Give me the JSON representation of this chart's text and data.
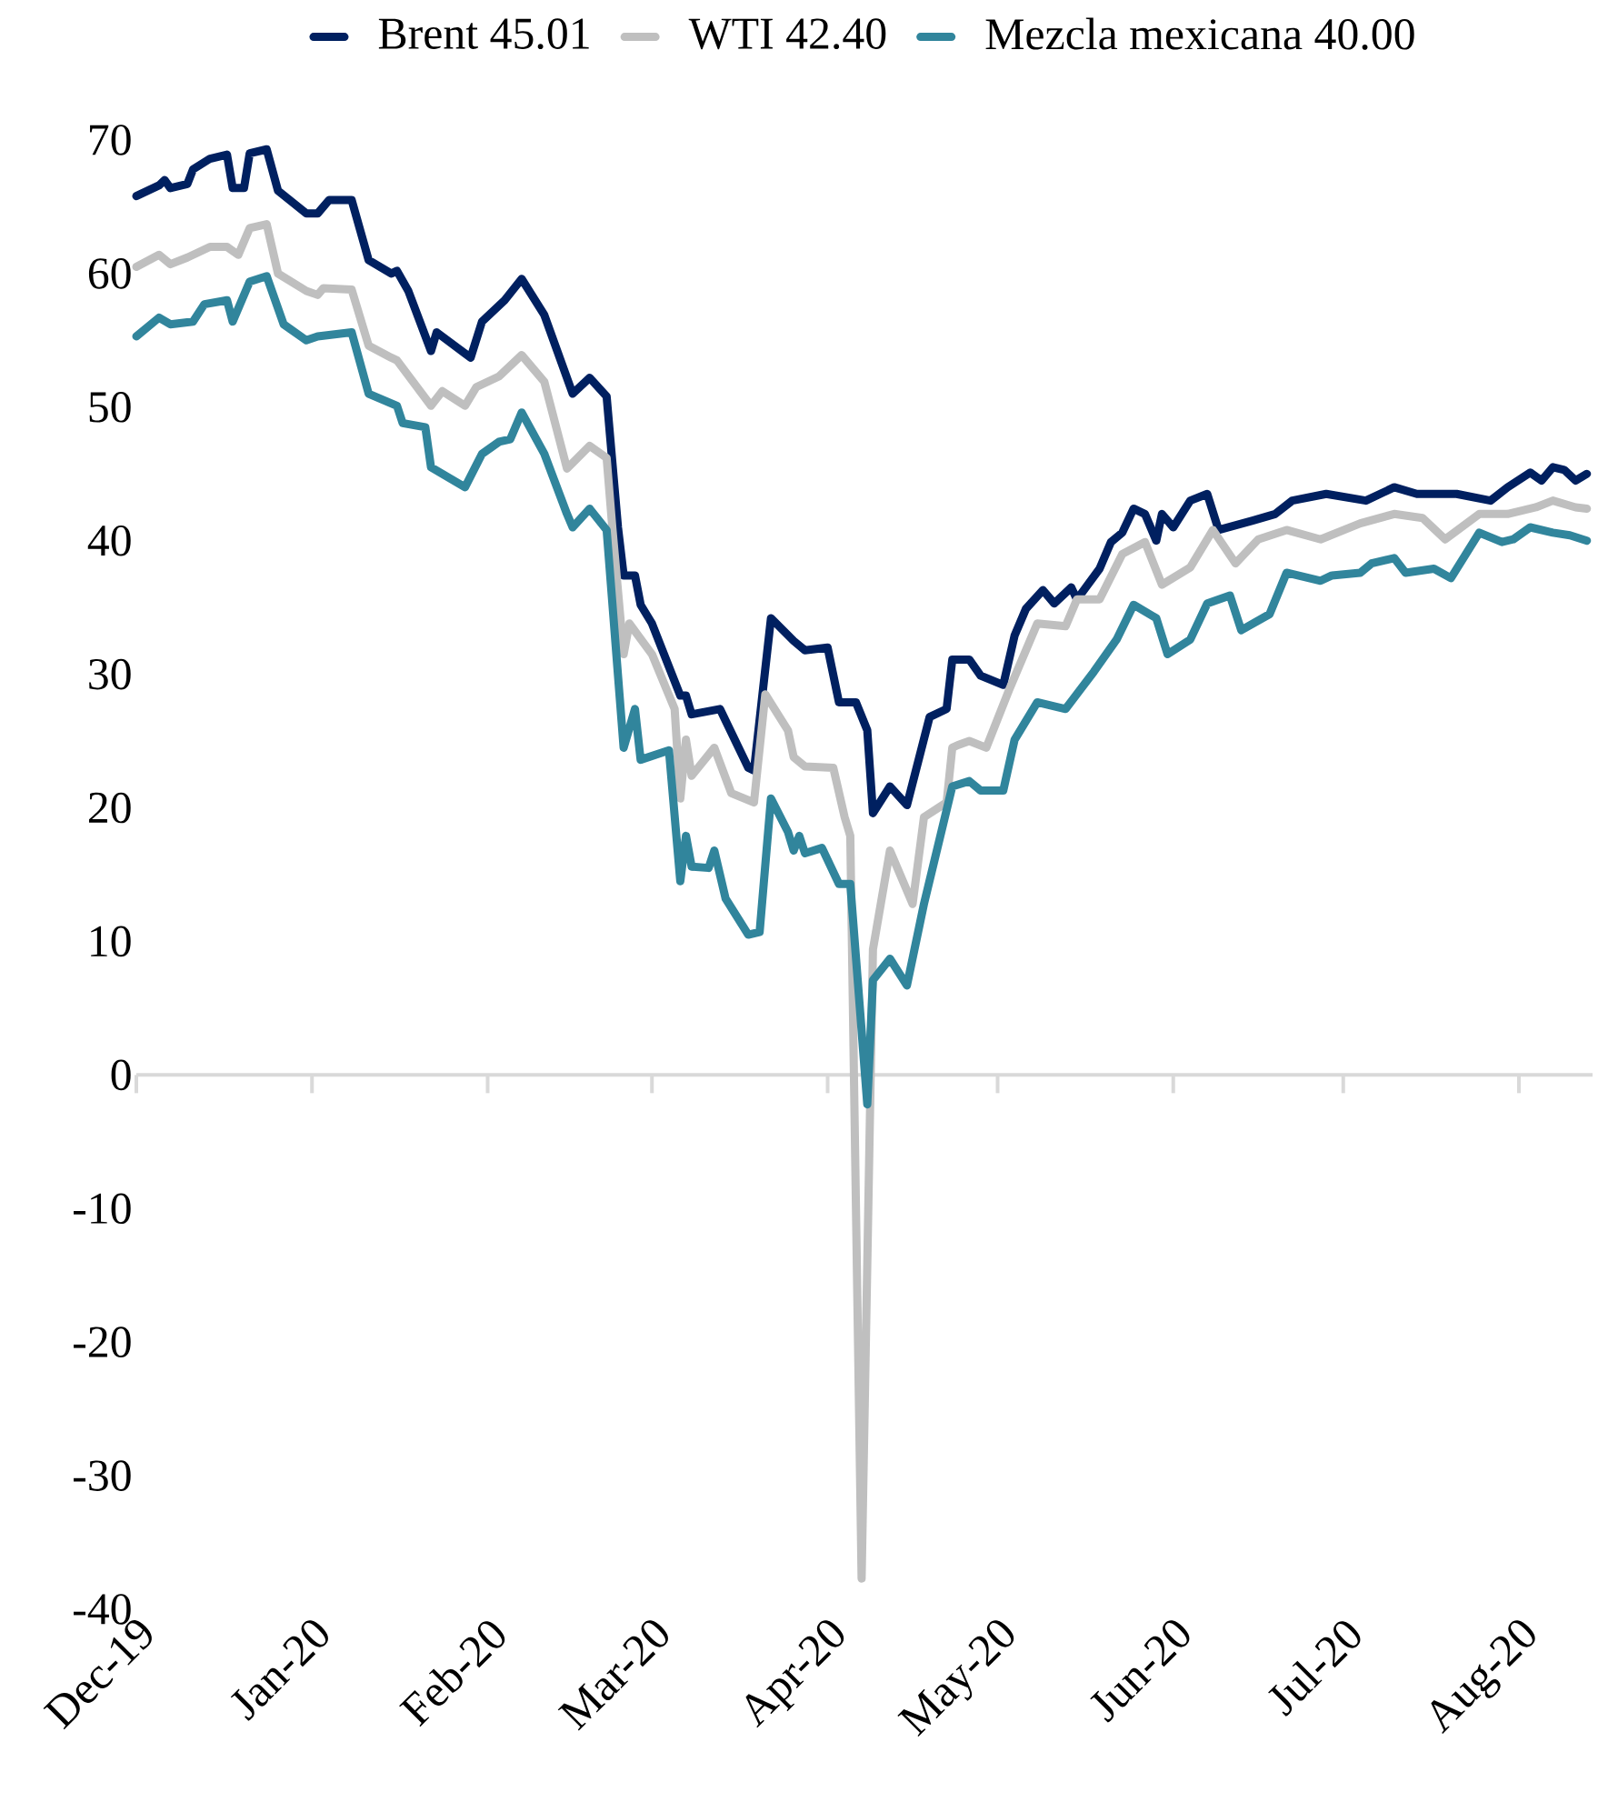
{
  "chart_data": {
    "type": "line",
    "legend": "top",
    "xlim": [
      "2019-12-01",
      "2020-08-14"
    ],
    "xticks": [
      {
        "value": "2019-12-01",
        "label": "Dec-19"
      },
      {
        "value": "2020-01-01",
        "label": "Jan-20"
      },
      {
        "value": "2020-02-01",
        "label": "Feb-20"
      },
      {
        "value": "2020-03-01",
        "label": "Mar-20"
      },
      {
        "value": "2020-04-01",
        "label": "Apr-20"
      },
      {
        "value": "2020-05-01",
        "label": "May-20"
      },
      {
        "value": "2020-06-01",
        "label": "Jun-20"
      },
      {
        "value": "2020-07-01",
        "label": "Jul-20"
      },
      {
        "value": "2020-08-01",
        "label": "Aug-20"
      }
    ],
    "ylim": [
      -40,
      70
    ],
    "yticks": [
      -40,
      -30,
      -20,
      -10,
      0,
      10,
      20,
      30,
      40,
      50,
      60,
      70
    ],
    "series": [
      {
        "name": "Brent 45.01",
        "color": "#002060",
        "x": [
          "2019-12-01",
          "2019-12-05",
          "2019-12-06",
          "2019-12-07",
          "2019-12-10",
          "2019-12-11",
          "2019-12-14",
          "2019-12-17",
          "2019-12-18",
          "2019-12-20",
          "2019-12-21",
          "2019-12-24",
          "2019-12-26",
          "2019-12-31",
          "2020-01-02",
          "2020-01-04",
          "2020-01-08",
          "2020-01-11",
          "2020-01-15",
          "2020-01-16",
          "2020-01-18",
          "2020-01-22",
          "2020-01-23",
          "2020-01-29",
          "2020-01-31",
          "2020-02-04",
          "2020-02-07",
          "2020-02-11",
          "2020-02-16",
          "2020-02-19",
          "2020-02-22",
          "2020-02-24",
          "2020-02-25",
          "2020-02-27",
          "2020-02-28",
          "2020-03-01",
          "2020-03-06",
          "2020-03-07",
          "2020-03-08",
          "2020-03-13",
          "2020-03-18",
          "2020-03-19",
          "2020-03-22",
          "2020-03-26",
          "2020-03-28",
          "2020-04-01",
          "2020-04-03",
          "2020-04-06",
          "2020-04-08",
          "2020-04-09",
          "2020-04-12",
          "2020-04-15",
          "2020-04-19",
          "2020-04-22",
          "2020-04-23",
          "2020-04-26",
          "2020-04-28",
          "2020-05-02",
          "2020-05-04",
          "2020-05-06",
          "2020-05-09",
          "2020-05-11",
          "2020-05-14",
          "2020-05-15",
          "2020-05-19",
          "2020-05-21",
          "2020-05-23",
          "2020-05-25",
          "2020-05-27",
          "2020-05-29",
          "2020-05-30",
          "2020-06-01",
          "2020-06-04",
          "2020-06-07",
          "2020-06-09",
          "2020-06-15",
          "2020-06-19",
          "2020-06-22",
          "2020-06-28",
          "2020-07-05",
          "2020-07-10",
          "2020-07-14",
          "2020-07-21",
          "2020-07-27",
          "2020-07-30",
          "2020-08-03",
          "2020-08-05",
          "2020-08-07",
          "2020-08-09",
          "2020-08-11",
          "2020-08-13"
        ],
        "values": [
          65.8,
          66.6,
          67,
          66.4,
          66.7,
          67.8,
          68.6,
          68.9,
          66.4,
          66.4,
          69,
          69.3,
          66.2,
          64.5,
          64.5,
          65.5,
          65.5,
          61,
          60,
          60.2,
          58.7,
          54.2,
          55.6,
          53.7,
          56.4,
          58,
          59.6,
          56.9,
          51,
          52.2,
          50.8,
          41,
          37.4,
          37.4,
          35.2,
          33.8,
          28.4,
          28.4,
          27,
          27.4,
          23,
          22.8,
          34.2,
          32.5,
          31.8,
          32,
          27.9,
          27.9,
          25.8,
          19.6,
          21.6,
          20.2,
          26.8,
          27.4,
          31.1,
          31.1,
          29.9,
          29.2,
          32.9,
          34.9,
          36.3,
          35.3,
          36.5,
          35.6,
          37.9,
          39.9,
          40.6,
          42.4,
          42,
          40,
          42,
          41,
          43,
          43.5,
          40.8,
          41.5,
          42,
          43,
          43.5,
          43,
          44,
          43.5,
          43.5,
          43,
          44,
          45.1,
          44.5,
          45.5,
          45.3,
          44.5,
          45
        ]
      },
      {
        "name": "WTI 42.40",
        "color": "#bfbfbf",
        "x": [
          "2019-12-01",
          "2019-12-05",
          "2019-12-07",
          "2019-12-10",
          "2019-12-14",
          "2019-12-17",
          "2019-12-19",
          "2019-12-21",
          "2019-12-24",
          "2019-12-26",
          "2019-12-31",
          "2020-01-02",
          "2020-01-03",
          "2020-01-08",
          "2020-01-11",
          "2020-01-15",
          "2020-01-16",
          "2020-01-22",
          "2020-01-24",
          "2020-01-28",
          "2020-01-30",
          "2020-02-03",
          "2020-02-07",
          "2020-02-11",
          "2020-02-15",
          "2020-02-19",
          "2020-02-22",
          "2020-02-23",
          "2020-02-25",
          "2020-02-26",
          "2020-03-01",
          "2020-03-05",
          "2020-03-06",
          "2020-03-07",
          "2020-03-08",
          "2020-03-12",
          "2020-03-15",
          "2020-03-19",
          "2020-03-21",
          "2020-03-25",
          "2020-03-26",
          "2020-03-28",
          "2020-04-02",
          "2020-04-04",
          "2020-04-05",
          "2020-04-07",
          "2020-04-09",
          "2020-04-12",
          "2020-04-16",
          "2020-04-18",
          "2020-04-22",
          "2020-04-23",
          "2020-04-24",
          "2020-04-26",
          "2020-04-29",
          "2020-05-03",
          "2020-05-08",
          "2020-05-13",
          "2020-05-15",
          "2020-05-19",
          "2020-05-23",
          "2020-05-27",
          "2020-05-30",
          "2020-06-04",
          "2020-06-08",
          "2020-06-12",
          "2020-06-16",
          "2020-06-21",
          "2020-06-27",
          "2020-07-04",
          "2020-07-10",
          "2020-07-15",
          "2020-07-19",
          "2020-07-25",
          "2020-07-30",
          "2020-08-04",
          "2020-08-07",
          "2020-08-11",
          "2020-08-13"
        ],
        "values": [
          60.5,
          61.4,
          60.7,
          61.2,
          62,
          62,
          61.4,
          63.4,
          63.7,
          60,
          58.7,
          58.4,
          58.9,
          58.8,
          54.6,
          53.7,
          53.5,
          50.1,
          51.2,
          50.1,
          51.5,
          52.3,
          53.9,
          51.9,
          45.4,
          47.1,
          46.2,
          41,
          31.5,
          33.8,
          31.5,
          27.4,
          20.7,
          25.1,
          22.4,
          24.5,
          21.1,
          20.4,
          28.5,
          25.8,
          23.8,
          23.1,
          23,
          19.3,
          17.9,
          -37.7,
          9.4,
          16.8,
          12.8,
          19.3,
          20.4,
          24.5,
          24.7,
          25,
          24.5,
          28.8,
          33.8,
          33.6,
          35.6,
          35.6,
          39,
          39.9,
          36.7,
          38,
          40.8,
          38.3,
          40.1,
          40.8,
          40.1,
          41.3,
          42,
          41.7,
          40.1,
          42,
          42,
          42.5,
          43,
          42.5,
          42.4
        ]
      },
      {
        "name": "Mezcla mexicana 40.00",
        "color": "#31859c",
        "x": [
          "2019-12-01",
          "2019-12-05",
          "2019-12-07",
          "2019-12-11",
          "2019-12-13",
          "2019-12-17",
          "2019-12-18",
          "2019-12-21",
          "2019-12-24",
          "2019-12-27",
          "2019-12-31",
          "2020-01-02",
          "2020-01-08",
          "2020-01-11",
          "2020-01-16",
          "2020-01-17",
          "2020-01-21",
          "2020-01-22",
          "2020-01-28",
          "2020-01-31",
          "2020-02-03",
          "2020-02-05",
          "2020-02-07",
          "2020-02-11",
          "2020-02-15",
          "2020-02-16",
          "2020-02-19",
          "2020-02-22",
          "2020-02-25",
          "2020-02-27",
          "2020-02-28",
          "2020-03-04",
          "2020-03-06",
          "2020-03-07",
          "2020-03-08",
          "2020-03-11",
          "2020-03-12",
          "2020-03-14",
          "2020-03-18",
          "2020-03-20",
          "2020-03-22",
          "2020-03-25",
          "2020-03-26",
          "2020-03-27",
          "2020-03-28",
          "2020-03-31",
          "2020-04-03",
          "2020-04-05",
          "2020-04-08",
          "2020-04-09",
          "2020-04-12",
          "2020-04-15",
          "2020-04-18",
          "2020-04-23",
          "2020-04-26",
          "2020-04-28",
          "2020-05-02",
          "2020-05-04",
          "2020-05-08",
          "2020-05-13",
          "2020-05-18",
          "2020-05-22",
          "2020-05-25",
          "2020-05-29",
          "2020-05-31",
          "2020-06-04",
          "2020-06-07",
          "2020-06-11",
          "2020-06-13",
          "2020-06-18",
          "2020-06-21",
          "2020-06-27",
          "2020-06-29",
          "2020-07-04",
          "2020-07-06",
          "2020-07-10",
          "2020-07-12",
          "2020-07-17",
          "2020-07-20",
          "2020-07-25",
          "2020-07-29",
          "2020-07-31",
          "2020-08-03",
          "2020-08-07",
          "2020-08-10",
          "2020-08-13"
        ],
        "values": [
          55.3,
          56.7,
          56.2,
          56.4,
          57.7,
          58,
          56.4,
          59.4,
          59.8,
          56.2,
          55,
          55.3,
          55.6,
          51,
          50.1,
          48.8,
          48.5,
          45.5,
          44,
          46.5,
          47.4,
          47.6,
          49.6,
          46.5,
          42,
          41,
          42.4,
          40.8,
          24.5,
          27.4,
          23.6,
          24.3,
          14.5,
          17.9,
          15.6,
          15.5,
          16.8,
          13.2,
          10.5,
          10.7,
          20.7,
          18.2,
          16.8,
          17.9,
          16.6,
          17,
          14.3,
          14.3,
          -2.2,
          7.1,
          8.7,
          6.7,
          12.8,
          21.6,
          22,
          21.3,
          21.3,
          25.1,
          27.9,
          27.4,
          30.2,
          32.6,
          35.2,
          34.2,
          31.5,
          32.6,
          35.3,
          35.9,
          33.3,
          34.5,
          37.6,
          37,
          37.4,
          37.6,
          38.3,
          38.7,
          37.6,
          37.9,
          37.2,
          40.6,
          39.9,
          40.1,
          41,
          40.6,
          40.4,
          40
        ]
      }
    ]
  }
}
